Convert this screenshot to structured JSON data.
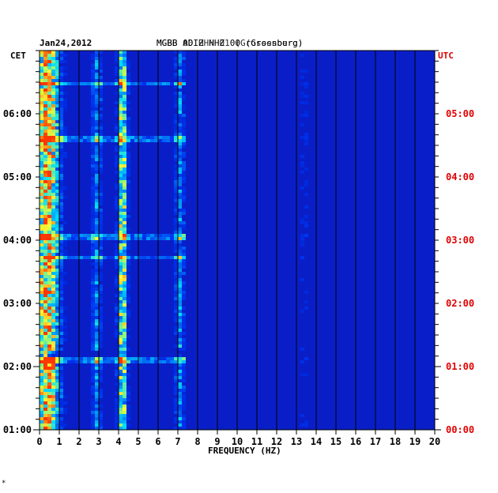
{
  "header": {
    "date": "Jan24,2012",
    "station_text_1": "MGBB ADIZ HHZ 00 (Grossburg)",
    "station_text_2": "MGBB 00 HHN 01 (Grossenberg)"
  },
  "corner_mark": "*",
  "colors": {
    "background": "#ffffff",
    "utc_labels": "#e00000",
    "cet_labels": "#000000",
    "spectrogram_base": "#0a1ec8",
    "grid_lines": "#000000"
  },
  "chart_data": {
    "type": "heatmap",
    "title": "Jan24,2012",
    "xlabel": "FREQUENCY (HZ)",
    "ylabel_left": "CET",
    "ylabel_right": "UTC",
    "xlim": [
      0,
      20
    ],
    "x_ticks": [
      "0",
      "1",
      "2",
      "3",
      "4",
      "5",
      "6",
      "7",
      "8",
      "9",
      "10",
      "11",
      "12",
      "13",
      "14",
      "15",
      "16",
      "17",
      "18",
      "19",
      "20"
    ],
    "y_ticks_left": [
      "06:00",
      "05:00",
      "04:00",
      "03:00",
      "02:00",
      "01:00"
    ],
    "y_ticks_right": [
      "05:00",
      "04:00",
      "03:00",
      "02:00",
      "01:00",
      "00:00"
    ],
    "time_range_utc": [
      "00:00",
      "05:50"
    ],
    "energy_bands_hz": [
      {
        "center": 0.4,
        "intensity": 1.0
      },
      {
        "center": 2.9,
        "intensity": 0.45
      },
      {
        "center": 4.2,
        "intensity": 0.8
      },
      {
        "center": 7.1,
        "intensity": 0.45
      },
      {
        "center": 13.4,
        "intensity": 0.2
      }
    ],
    "broadband_events_utc": [
      "01:08",
      "02:45",
      "03:05",
      "04:37",
      "05:30"
    ]
  }
}
